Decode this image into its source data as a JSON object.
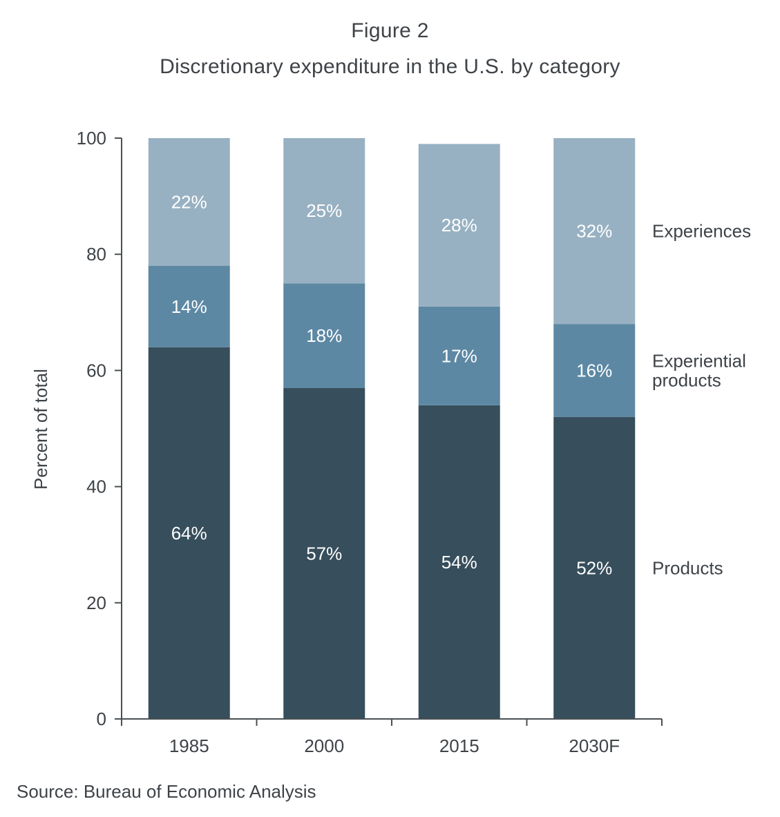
{
  "figure_label": "Figure 2",
  "title": "Discretionary expenditure in the U.S. by category",
  "source": "Source: Bureau of Economic Analysis",
  "colors": {
    "Products": "#374e5c",
    "Experiential products": "#5d88a4",
    "Experiences": "#98b1c2",
    "axis": "#4a4f54",
    "text": "#3e4348",
    "bar_label": "#ffffff"
  },
  "chart_data": {
    "type": "bar",
    "stacked": true,
    "categories": [
      "1985",
      "2000",
      "2015",
      "2030F"
    ],
    "series": [
      {
        "name": "Products",
        "values": [
          64,
          57,
          54,
          52
        ],
        "labels": [
          "64%",
          "57%",
          "54%",
          "52%"
        ]
      },
      {
        "name": "Experiential products",
        "values": [
          14,
          18,
          17,
          16
        ],
        "labels": [
          "14%",
          "18%",
          "17%",
          "16%"
        ]
      },
      {
        "name": "Experiences",
        "values": [
          22,
          25,
          28,
          32
        ],
        "labels": [
          "22%",
          "25%",
          "28%",
          "32%"
        ]
      }
    ],
    "series_labels": [
      "Experiences",
      "Experiential products",
      "Products"
    ],
    "ylabel": "Percent of total",
    "ylim": [
      0,
      100
    ],
    "yticks": [
      0,
      20,
      40,
      60,
      80,
      100
    ],
    "grid": false,
    "legend": "right"
  }
}
